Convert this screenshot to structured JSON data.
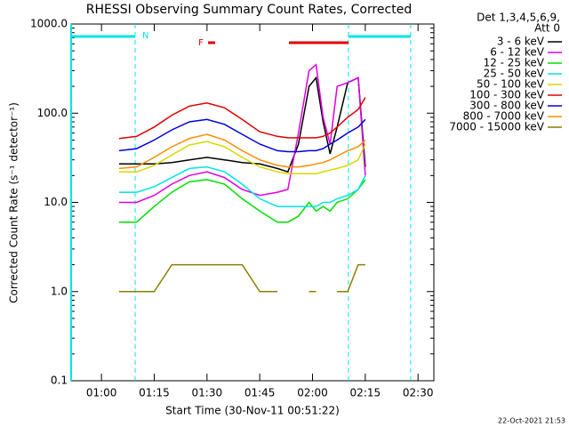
{
  "chart_data": {
    "type": "line",
    "title": "RHESSI Observing Summary Count Rates, Corrected",
    "x_label": "Start Time (30-Nov-11 00:51:22)",
    "y_label": "Corrected Count Rate (s⁻¹ detector⁻¹)",
    "legend_header": [
      "Det 1,3,4,5,6,9,",
      "Att 0"
    ],
    "footer": "22-Oct-2021 21:53",
    "log_y": true,
    "xlim": [
      51.37,
      154.5
    ],
    "xticks": [
      {
        "value": 60,
        "label": "01:00"
      },
      {
        "value": 75,
        "label": "01:15"
      },
      {
        "value": 90,
        "label": "01:30"
      },
      {
        "value": 105,
        "label": "01:45"
      },
      {
        "value": 120,
        "label": "02:00"
      },
      {
        "value": 135,
        "label": "02:15"
      },
      {
        "value": 150,
        "label": "02:30"
      }
    ],
    "ylim": [
      0.1,
      1000
    ],
    "yticks": [
      {
        "value": 0.1,
        "label": "0.1"
      },
      {
        "value": 1,
        "label": "1.0"
      },
      {
        "value": 10,
        "label": "10.0"
      },
      {
        "value": 100,
        "label": "100.0"
      },
      {
        "value": 1000,
        "label": "1000.0"
      }
    ],
    "night": {
      "label": "N",
      "color": "#00e5e5",
      "spans": [
        [
          51.37,
          69.57
        ],
        [
          130.2,
          147.9
        ]
      ]
    },
    "flare": {
      "label": "F",
      "color": "#e00000",
      "spans": [
        [
          90.3,
          92.3
        ],
        [
          113.3,
          130.2
        ]
      ]
    },
    "x": [
      65,
      70,
      75,
      80,
      85,
      90,
      95,
      100,
      105,
      110,
      113,
      116,
      119,
      121,
      123,
      125,
      127,
      130,
      133,
      135
    ],
    "series": [
      {
        "name": "3 - 6 keV",
        "color": "#000000",
        "values": [
          27,
          27,
          27,
          28,
          30,
          32,
          30,
          28,
          27,
          24,
          22,
          45,
          200,
          250,
          80,
          35,
          70,
          220,
          250,
          25
        ]
      },
      {
        "name": "6 - 12 keV",
        "color": "#e000e0",
        "values": [
          10,
          10,
          12,
          16,
          20,
          22,
          19,
          14,
          12,
          13,
          14,
          60,
          300,
          350,
          90,
          45,
          200,
          220,
          250,
          20
        ]
      },
      {
        "name": "12 - 25 keV",
        "color": "#00e000",
        "values": [
          6,
          6,
          9,
          13,
          17,
          18,
          16,
          11,
          8,
          6,
          6,
          7,
          10,
          8,
          9,
          8,
          10,
          11,
          14,
          18
        ]
      },
      {
        "name": "25 - 50 keV",
        "color": "#00e5e5",
        "values": [
          13,
          13,
          15,
          19,
          24,
          25,
          22,
          16,
          11,
          9,
          9,
          9,
          9,
          9,
          10,
          10,
          11,
          12,
          14,
          20
        ]
      },
      {
        "name": "50 - 100 keV",
        "color": "#d8d800",
        "values": [
          22,
          22,
          26,
          34,
          44,
          48,
          42,
          32,
          25,
          22,
          21,
          21,
          21,
          21,
          22,
          23,
          24,
          26,
          30,
          45
        ]
      },
      {
        "name": "100 - 300 keV",
        "color": "#e00000",
        "values": [
          52,
          55,
          70,
          95,
          120,
          130,
          115,
          85,
          62,
          55,
          53,
          53,
          53,
          53,
          55,
          60,
          70,
          90,
          110,
          150
        ]
      },
      {
        "name": "300 - 800 keV",
        "color": "#0000e0",
        "values": [
          38,
          40,
          50,
          65,
          80,
          85,
          75,
          58,
          45,
          38,
          37,
          37,
          38,
          38,
          40,
          45,
          50,
          60,
          70,
          85
        ]
      },
      {
        "name": "800 - 7000 keV",
        "color": "#ff8c00",
        "values": [
          24,
          25,
          32,
          42,
          52,
          58,
          50,
          38,
          30,
          26,
          25,
          25,
          26,
          27,
          28,
          30,
          33,
          38,
          42,
          50
        ]
      },
      {
        "name": "7000 - 15000 keV",
        "color": "#8b7d00",
        "values": [
          1,
          1,
          1,
          2,
          2,
          2,
          2,
          2,
          1,
          1,
          null,
          null,
          1,
          1,
          null,
          null,
          1,
          1,
          2,
          2
        ]
      }
    ]
  }
}
